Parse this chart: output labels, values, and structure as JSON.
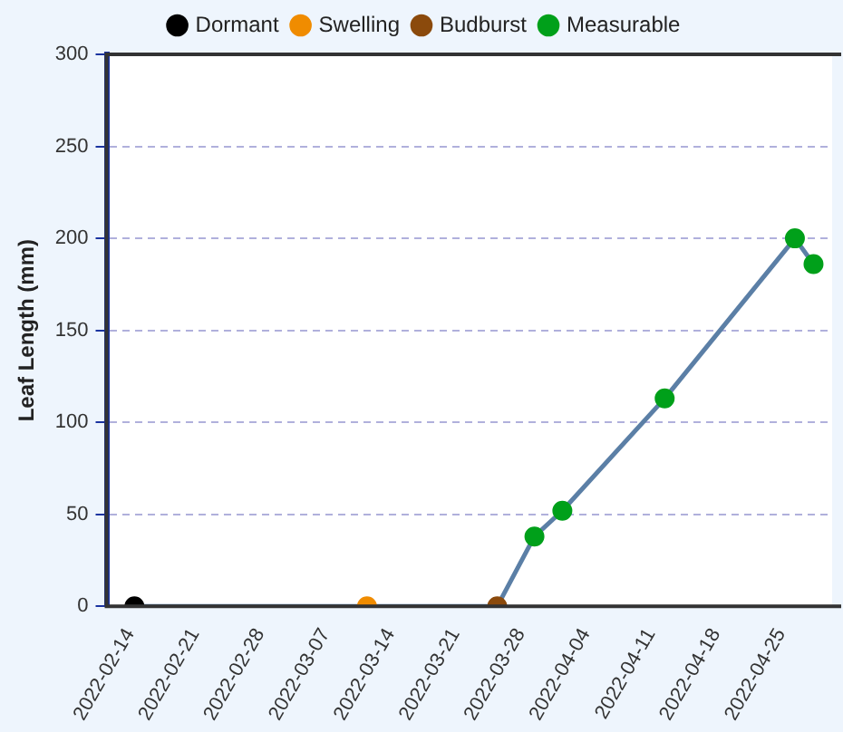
{
  "chart_data": {
    "type": "line",
    "ylabel": "Leaf Length (mm)",
    "xlim": [
      "2022-02-11",
      "2022-04-30"
    ],
    "xticks": [
      "2022-02-14",
      "2022-02-21",
      "2022-02-28",
      "2022-03-07",
      "2022-03-14",
      "2022-03-21",
      "2022-03-28",
      "2022-04-04",
      "2022-04-11",
      "2022-04-18",
      "2022-04-25"
    ],
    "ylim": [
      0,
      300
    ],
    "yticks": [
      0,
      50,
      100,
      150,
      200,
      250,
      300
    ],
    "grid": "y",
    "legend": "top",
    "series": [
      {
        "type": "line",
        "color": "#5b7fa6",
        "marker": "none",
        "line_style": "solid",
        "x": [
          "2022-02-14",
          "2022-03-11",
          "2022-03-25",
          "2022-03-29",
          "2022-04-01",
          "2022-04-12",
          "2022-04-26",
          "2022-04-28"
        ],
        "values": [
          0,
          0,
          0,
          38,
          52,
          113,
          200,
          186
        ]
      },
      {
        "type": "scatter",
        "name": "Dormant",
        "color": "#000000",
        "marker": "circle",
        "x": [
          "2022-02-14"
        ],
        "values": [
          0
        ]
      },
      {
        "type": "scatter",
        "name": "Swelling",
        "color": "#f08c00",
        "marker": "circle",
        "x": [
          "2022-03-11"
        ],
        "values": [
          0
        ]
      },
      {
        "type": "scatter",
        "name": "Budburst",
        "color": "#8b4a0c",
        "marker": "circle",
        "x": [
          "2022-03-25"
        ],
        "values": [
          0
        ]
      },
      {
        "type": "scatter",
        "name": "Measurable",
        "color": "#00a01a",
        "marker": "circle",
        "x": [
          "2022-03-29",
          "2022-04-01",
          "2022-04-12",
          "2022-04-26",
          "2022-04-28"
        ],
        "values": [
          38,
          52,
          113,
          200,
          186
        ]
      }
    ]
  }
}
